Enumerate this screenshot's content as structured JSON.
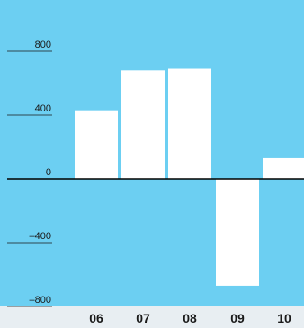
{
  "chart_data": {
    "type": "bar",
    "categories": [
      "06",
      "07",
      "08",
      "09",
      "10"
    ],
    "values": [
      430,
      680,
      690,
      -670,
      130
    ],
    "ylim": [
      -860,
      860
    ],
    "yticks": [
      800,
      400,
      0,
      -400,
      -800
    ],
    "ytick_labels": [
      "800",
      "400",
      "0",
      "–400",
      "–800"
    ],
    "grid": false,
    "colors": {
      "plot_background": "#6ccff2",
      "bar": "#ffffff",
      "zero_line": "#000000",
      "tick_line": "#1a1a1a",
      "page_background": "#e8eef2"
    }
  }
}
